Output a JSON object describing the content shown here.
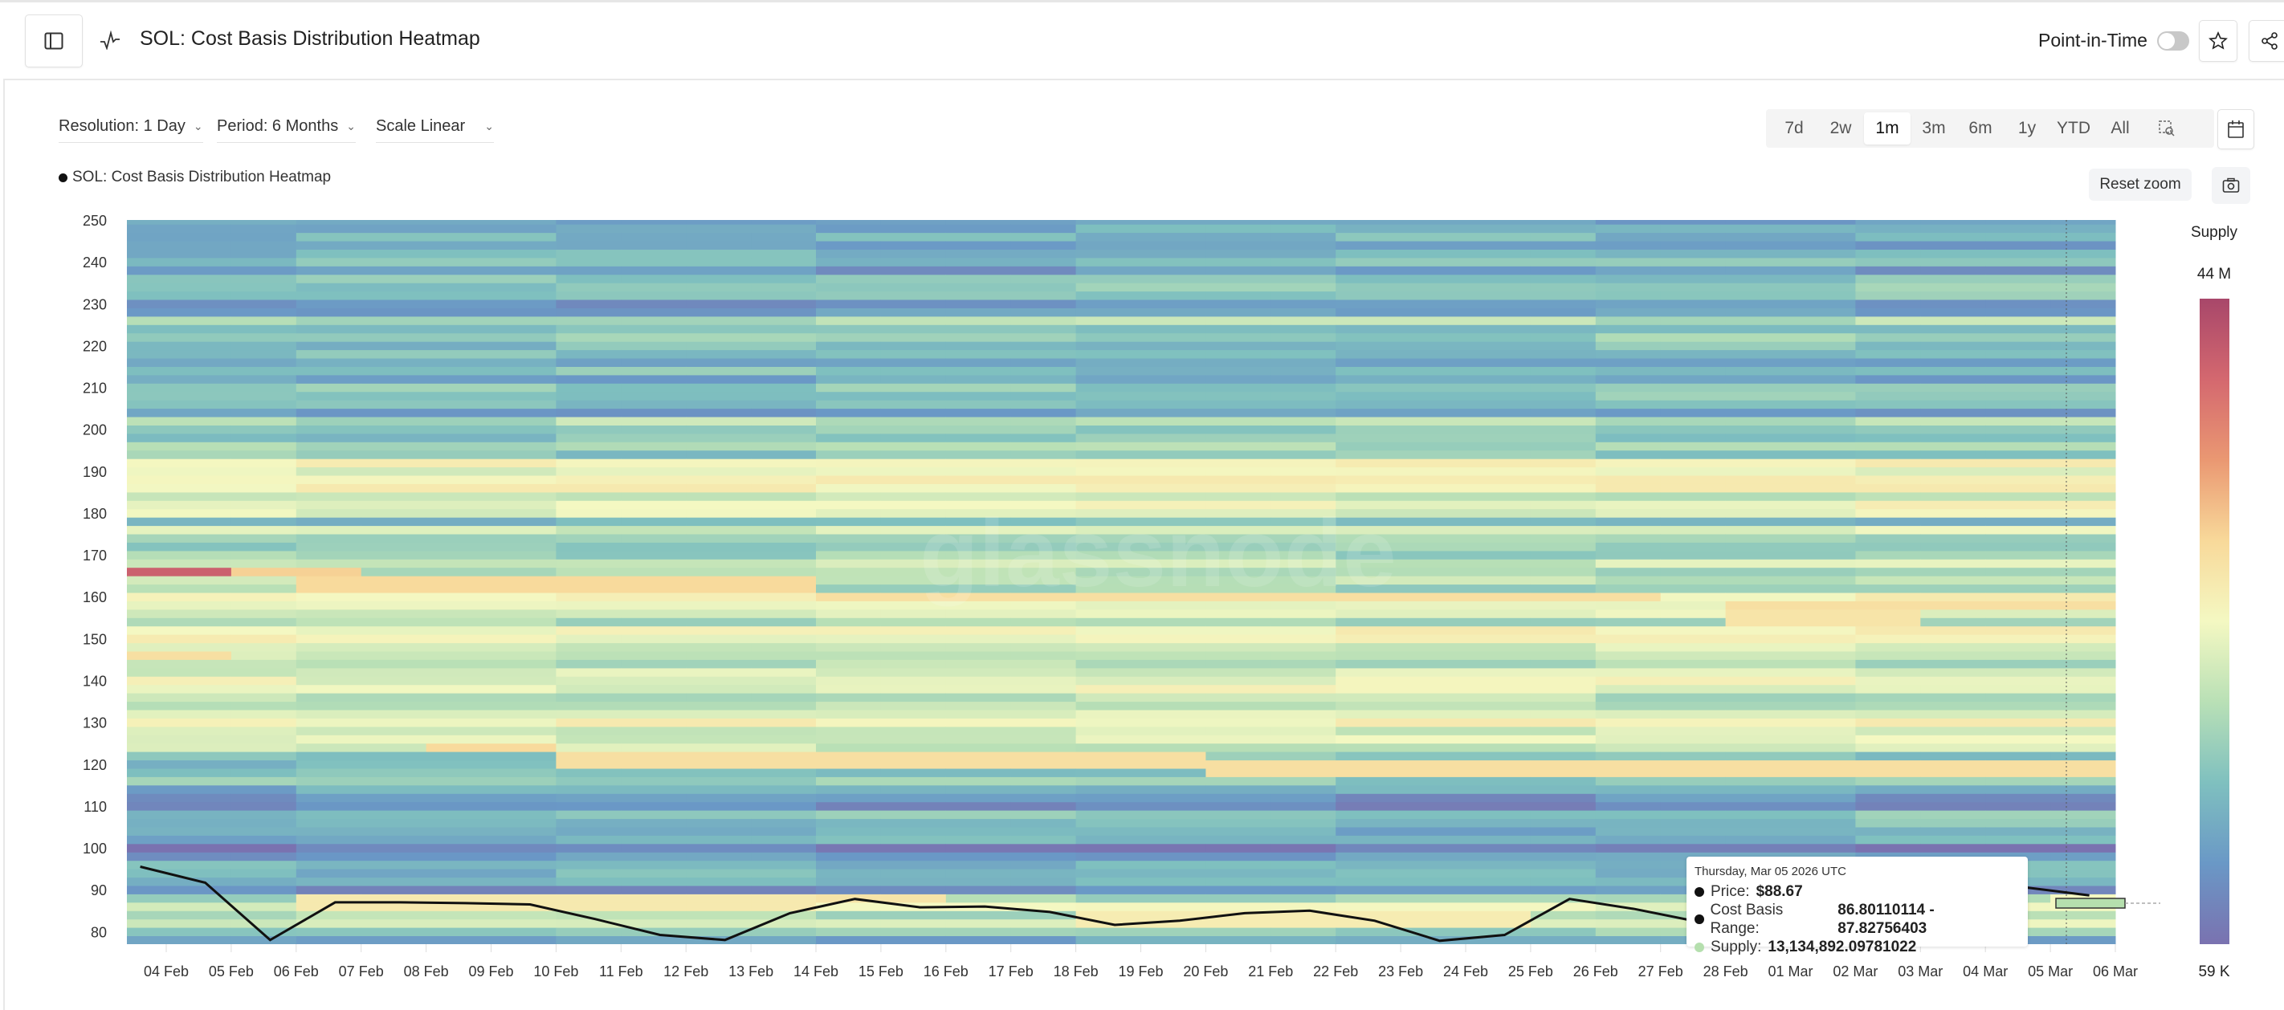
{
  "header": {
    "title": "SOL: Cost Basis Distribution Heatmap",
    "point_in_time_label": "Point-in-Time",
    "point_in_time_enabled": false
  },
  "controls": {
    "resolution": "Resolution: 1 Day",
    "period": "Period: 6 Months",
    "scale": "Scale Linear",
    "ranges": [
      "7d",
      "2w",
      "1m",
      "3m",
      "6m",
      "1y",
      "YTD",
      "All"
    ],
    "active_range": "1m",
    "reset_zoom": "Reset zoom"
  },
  "legend": {
    "label": "SOL: Cost Basis Distribution Heatmap"
  },
  "watermark": "glassnode",
  "tooltip": {
    "date": "Thursday, Mar 05 2026 UTC",
    "price_label": "Price:",
    "price_value": "$88.67",
    "range_label": "Cost Basis Range:",
    "range_value": "86.80110114 - 87.82756403",
    "supply_label": "Supply:",
    "supply_value": "13,134,892.09781022",
    "supply_color": "#b5dfae"
  },
  "chart_data": {
    "type": "heatmap",
    "title": "SOL: Cost Basis Distribution Heatmap",
    "x_tick_labels": [
      "04 Feb",
      "05 Feb",
      "06 Feb",
      "07 Feb",
      "08 Feb",
      "09 Feb",
      "10 Feb",
      "11 Feb",
      "12 Feb",
      "13 Feb",
      "14 Feb",
      "15 Feb",
      "16 Feb",
      "17 Feb",
      "18 Feb",
      "19 Feb",
      "20 Feb",
      "21 Feb",
      "22 Feb",
      "23 Feb",
      "24 Feb",
      "25 Feb",
      "26 Feb",
      "27 Feb",
      "28 Feb",
      "01 Mar",
      "02 Mar",
      "03 Mar",
      "04 Mar",
      "05 Mar",
      "06 Mar"
    ],
    "y_ticks": [
      80,
      90,
      100,
      110,
      120,
      130,
      140,
      150,
      160,
      170,
      180,
      190,
      200,
      210,
      220,
      230,
      240,
      250
    ],
    "ylim": [
      77,
      250
    ],
    "price_series": {
      "dates": [
        "03 Feb",
        "04 Feb",
        "05 Feb",
        "06 Feb",
        "07 Feb",
        "08 Feb",
        "09 Feb",
        "10 Feb",
        "11 Feb",
        "12 Feb",
        "13 Feb",
        "14 Feb",
        "15 Feb",
        "16 Feb",
        "17 Feb",
        "18 Feb",
        "19 Feb",
        "20 Feb",
        "21 Feb",
        "22 Feb",
        "23 Feb",
        "24 Feb",
        "25 Feb",
        "26 Feb",
        "27 Feb",
        "28 Feb",
        "01 Mar",
        "02 Mar",
        "03 Mar",
        "04 Mar",
        "05 Mar"
      ],
      "values": [
        95.5,
        91.7,
        78.0,
        87.0,
        87.0,
        86.8,
        86.5,
        83.0,
        79.2,
        78.0,
        84.4,
        87.8,
        85.8,
        86.0,
        84.7,
        81.6,
        82.6,
        84.4,
        85.0,
        82.6,
        77.8,
        79.2,
        87.8,
        85.4,
        82.3,
        88.0,
        85.0,
        88.0,
        90.4,
        90.6,
        88.67
      ]
    },
    "supply_profile": [
      [
        78,
        0.2
      ],
      [
        82,
        0.3
      ],
      [
        86,
        0.4
      ],
      [
        90,
        0.18
      ],
      [
        95,
        0.1
      ],
      [
        100,
        0.1
      ],
      [
        105,
        0.15
      ],
      [
        110,
        0.15
      ],
      [
        115,
        0.2
      ],
      [
        120,
        0.3
      ],
      [
        125,
        0.35
      ],
      [
        130,
        0.42
      ],
      [
        135,
        0.45
      ],
      [
        140,
        0.5
      ],
      [
        145,
        0.48
      ],
      [
        150,
        0.45
      ],
      [
        155,
        0.42
      ],
      [
        160,
        0.4
      ],
      [
        165,
        0.35
      ],
      [
        170,
        0.3
      ],
      [
        175,
        0.35
      ],
      [
        180,
        0.38
      ],
      [
        185,
        0.45
      ],
      [
        188,
        0.55
      ],
      [
        192,
        0.4
      ],
      [
        196,
        0.3
      ],
      [
        200,
        0.25
      ],
      [
        205,
        0.3
      ],
      [
        210,
        0.25
      ],
      [
        215,
        0.3
      ],
      [
        220,
        0.3
      ],
      [
        225,
        0.3
      ],
      [
        230,
        0.12
      ],
      [
        235,
        0.2
      ],
      [
        240,
        0.18
      ],
      [
        245,
        0.2
      ],
      [
        250,
        0.12
      ]
    ],
    "supply_bands": [
      {
        "price": 166,
        "from": "03 Feb",
        "to": "04 Feb",
        "level": 0.9
      },
      {
        "price": 166,
        "from": "05 Feb",
        "to": "06 Feb",
        "level": 0.64
      },
      {
        "price": 163,
        "from": "06 Feb",
        "to": "13 Feb",
        "level": 0.62
      },
      {
        "price": 160,
        "from": "14 Feb",
        "to": "26 Feb",
        "level": 0.6
      },
      {
        "price": 158,
        "from": "28 Feb",
        "to": "05 Mar",
        "level": 0.6
      },
      {
        "price": 155,
        "from": "28 Feb",
        "to": "02 Mar",
        "level": 0.58
      },
      {
        "price": 146,
        "from": "03 Feb",
        "to": "04 Feb",
        "level": 0.6
      },
      {
        "price": 124,
        "from": "08 Feb",
        "to": "09 Feb",
        "level": 0.62
      },
      {
        "price": 121,
        "from": "10 Feb",
        "to": "19 Feb",
        "level": 0.6
      },
      {
        "price": 119,
        "from": "20 Feb",
        "to": "05 Mar",
        "level": 0.6
      },
      {
        "price": 87,
        "from": "06 Feb",
        "to": "13 Feb",
        "level": 0.56
      },
      {
        "price": 88,
        "from": "14 Feb",
        "to": "15 Feb",
        "level": 0.58
      },
      {
        "price": 83,
        "from": "18 Feb",
        "to": "24 Feb",
        "level": 0.55
      },
      {
        "price": 87,
        "from": "05 Mar",
        "to": "05 Mar",
        "level": 0.5
      }
    ],
    "colorbar": {
      "label": "Supply",
      "max_label": "44 M",
      "min_label": "59 K",
      "colors": [
        "#7a72b0",
        "#6a98c6",
        "#7fc0bf",
        "#b9e0b6",
        "#f4f8c2",
        "#f8d99a",
        "#ea9872",
        "#d4686f",
        "#a8476a"
      ]
    },
    "line_color": "#111111"
  }
}
